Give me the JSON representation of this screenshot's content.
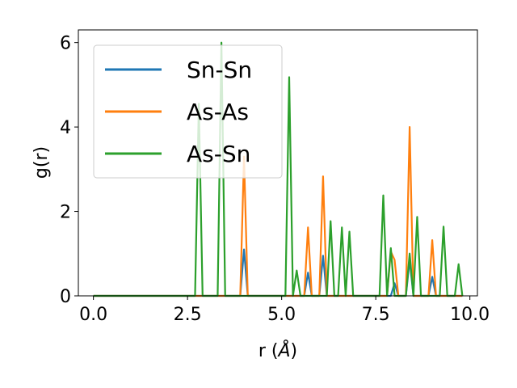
{
  "chart_data": {
    "type": "line",
    "title": "",
    "xlabel": "r (",
    "xlabel_unit": "Å",
    "xlabel_close": ")",
    "ylabel": "g(r)",
    "xlim": [
      -0.4,
      10.2
    ],
    "ylim": [
      0,
      6.3
    ],
    "xticks": [
      0.0,
      2.5,
      5.0,
      7.5,
      10.0
    ],
    "xtick_labels": [
      "0.0",
      "2.5",
      "5.0",
      "7.5",
      "10.0"
    ],
    "yticks": [
      0,
      2,
      4,
      6
    ],
    "ytick_labels": [
      "0",
      "2",
      "4",
      "6"
    ],
    "grid": false,
    "legend_position": "top-left",
    "series": [
      {
        "name": "Sn-Sn",
        "color": "#1f77b4",
        "x": [
          0.0,
          3.9,
          4.0,
          4.1,
          5.6,
          5.7,
          5.8,
          6.0,
          6.1,
          6.2,
          7.9,
          8.0,
          8.1,
          8.3,
          8.4,
          8.5,
          8.9,
          9.0,
          9.1,
          9.8
        ],
        "y": [
          0,
          0,
          1.1,
          0,
          0,
          0.55,
          0,
          0,
          0.95,
          0,
          0,
          0.3,
          0,
          0,
          0.85,
          0,
          0,
          0.45,
          0,
          0
        ]
      },
      {
        "name": "As-As",
        "color": "#ff7f0e",
        "x": [
          0.0,
          3.9,
          4.0,
          4.1,
          5.6,
          5.7,
          5.8,
          6.0,
          6.1,
          6.2,
          7.8,
          7.9,
          8.0,
          8.1,
          8.3,
          8.4,
          8.5,
          8.9,
          9.0,
          9.1,
          9.8
        ],
        "y": [
          0,
          0,
          3.3,
          0,
          0,
          1.62,
          0,
          0,
          2.83,
          0,
          0,
          1.05,
          0.85,
          0,
          0,
          4.0,
          0,
          0,
          1.32,
          0,
          0
        ]
      },
      {
        "name": "As-Sn",
        "color": "#2ca02c",
        "x": [
          0.0,
          2.7,
          2.8,
          2.9,
          3.3,
          3.4,
          3.5,
          5.1,
          5.2,
          5.3,
          5.4,
          5.5,
          6.2,
          6.3,
          6.4,
          6.5,
          6.6,
          6.7,
          6.8,
          6.9,
          7.6,
          7.7,
          7.8,
          7.9,
          8.0,
          8.3,
          8.4,
          8.5,
          8.6,
          8.7,
          9.2,
          9.3,
          9.4,
          9.6,
          9.7,
          9.8
        ],
        "y": [
          0,
          0,
          4.55,
          0,
          0,
          6.0,
          0,
          0,
          5.18,
          0,
          0.6,
          0,
          0,
          1.77,
          0,
          0,
          1.62,
          0,
          1.52,
          0,
          0,
          2.38,
          0,
          1.13,
          0,
          0,
          1.0,
          0,
          1.87,
          0,
          0,
          1.64,
          0,
          0,
          0.75,
          0
        ]
      }
    ]
  }
}
